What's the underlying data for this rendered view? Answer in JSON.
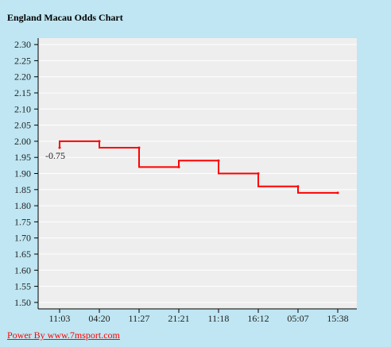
{
  "title": "England Macau Odds Chart",
  "footer": {
    "link_text": "Power By www.7msport.com"
  },
  "colors": {
    "background": "#bfe6f2",
    "plot_background": "#eeeeee",
    "line": "#ff0000"
  },
  "chart_data": {
    "type": "line",
    "step": true,
    "title": "England Macau Odds Chart",
    "categories": [
      "11:03",
      "04:20",
      "11:27",
      "21:21",
      "11:18",
      "16:12",
      "05:07",
      "15:38"
    ],
    "y_ticks": [
      "2.30",
      "2.25",
      "2.20",
      "2.15",
      "2.10",
      "2.05",
      "2.00",
      "1.95",
      "1.90",
      "1.85",
      "1.80",
      "1.75",
      "1.70",
      "1.65",
      "1.60",
      "1.55",
      "1.50"
    ],
    "ylim": [
      1.48,
      2.32
    ],
    "grid": true,
    "series": [
      {
        "values": [
          1.98,
          2.0,
          1.98,
          1.92,
          1.94,
          1.9,
          1.86,
          1.84
        ]
      }
    ],
    "annotation": {
      "text": "-0.75",
      "category": "11:03"
    }
  }
}
